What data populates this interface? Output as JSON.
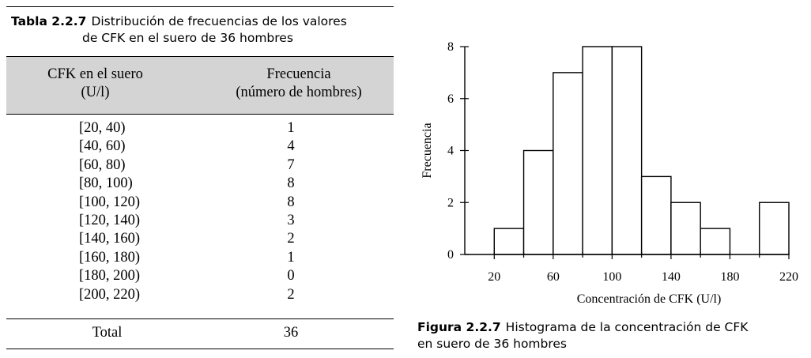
{
  "table": {
    "caption_number": "Tabla 2.2.7",
    "caption_line1": "Distribución de frecuencias de los valores",
    "caption_line2": "de CFK en el suero de 36 hombres",
    "col1_header_line1": "CFK en el suero",
    "col1_header_line2": "(U/l)",
    "col2_header_line1": "Frecuencia",
    "col2_header_line2": "(número de hombres)",
    "rows": [
      {
        "interval": "[20, 40)",
        "freq": "1"
      },
      {
        "interval": "[40, 60)",
        "freq": "4"
      },
      {
        "interval": "[60, 80)",
        "freq": "7"
      },
      {
        "interval": "[80, 100)",
        "freq": "8"
      },
      {
        "interval": "[100, 120)",
        "freq": "8"
      },
      {
        "interval": "[120, 140)",
        "freq": "3"
      },
      {
        "interval": "[140, 160)",
        "freq": "2"
      },
      {
        "interval": "[160, 180)",
        "freq": "1"
      },
      {
        "interval": "[180, 200)",
        "freq": "0"
      },
      {
        "interval": "[200, 220)",
        "freq": "2"
      }
    ],
    "total_label": "Total",
    "total_value": "36"
  },
  "figure": {
    "caption_number": "Figura 2.2.7",
    "caption_text_line1": "Histograma de la concentración de CFK",
    "caption_text_line2": "en suero de 36 hombres"
  },
  "chart_data": {
    "type": "bar",
    "bins": [
      [
        20,
        40
      ],
      [
        40,
        60
      ],
      [
        60,
        80
      ],
      [
        80,
        100
      ],
      [
        100,
        120
      ],
      [
        120,
        140
      ],
      [
        140,
        160
      ],
      [
        160,
        180
      ],
      [
        180,
        200
      ],
      [
        200,
        220
      ]
    ],
    "values": [
      1,
      4,
      7,
      8,
      8,
      3,
      2,
      1,
      0,
      2
    ],
    "xlabel": "Concentración de CFK (U/l)",
    "ylabel": "Frecuencia",
    "xticks": [
      20,
      60,
      100,
      140,
      180,
      220
    ],
    "yticks": [
      0,
      2,
      4,
      6,
      8
    ],
    "xlim": [
      0,
      220
    ],
    "ylim": [
      0,
      8
    ],
    "grid": false,
    "bar_fill": "#ffffff",
    "bar_stroke": "#000000"
  }
}
